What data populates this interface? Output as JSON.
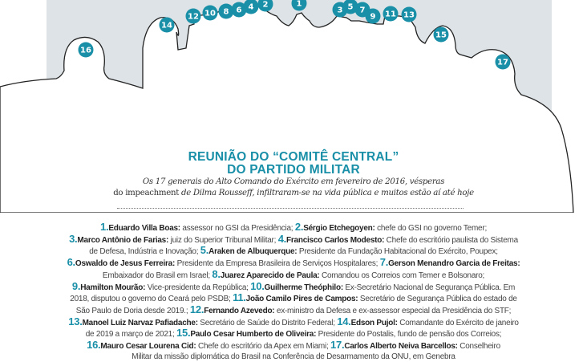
{
  "colors": {
    "accent": "#1a8fa8",
    "illustration_bg": "#dde3e6"
  },
  "badges": [
    "1",
    "2",
    "3",
    "4",
    "5",
    "6",
    "7",
    "8",
    "9",
    "10",
    "11",
    "12",
    "13",
    "14",
    "15",
    "16",
    "17"
  ],
  "title": {
    "line1": "REUNIÃO DO “COMITÊ CENTRAL”",
    "line2": "DO PARTIDO MILITAR"
  },
  "subtitle": {
    "part1": "Os 17 generais do Alto Comando do Exército em fevereiro de 2016, vésperas",
    "part2a": "do ",
    "part2b": "impeachment",
    "part2c": " de Dilma Rousseff, infiltraram-se na vida pública e muitos estão aí até hoje"
  },
  "lines": [
    [
      {
        "n": "1.",
        "name": "Eduardo Villa Boas:",
        "text": " assessor no GSI da Presidência; "
      },
      {
        "n": "2.",
        "name": "Sérgio Etchegoyen:",
        "text": " chefe do GSI no governo Temer;"
      }
    ],
    [
      {
        "n": "3.",
        "name": "Marco Antônio de Farias:",
        "text": " juiz do Superior Tribunal Militar; "
      },
      {
        "n": "4.",
        "name": "Francisco Carlos Modesto:",
        "text": " Chefe do escritório paulista do Sistema"
      }
    ],
    [
      {
        "text": "de Defesa, Indústria e Inovação; "
      },
      {
        "n": "5.",
        "name": "Araken de Albuquerque:",
        "text": " Presidente da Fundação Habitacional do Exército, Poupex;"
      }
    ],
    [
      {
        "n": "6.",
        "name": "Oswaldo de Jesus Ferreira:",
        "text": " Presidente da Empresa Brasileira de Serviços Hospitalares; "
      },
      {
        "n": "7.",
        "name": "Gerson Menandro Garcia de Freitas:"
      }
    ],
    [
      {
        "text": "Embaixador do Brasil em Israel; "
      },
      {
        "n": "8.",
        "name": "Juarez Aparecido de Paula:",
        "text": " Comandou os Correios com Temer e Bolsonaro;"
      }
    ],
    [
      {
        "n": "9.",
        "name": "Hamilton Mourão:",
        "text": " Vice-presidente da República; "
      },
      {
        "n": "10.",
        "name": "Guilherme Theóphilo:",
        "text": " Ex-Secretário Nacional de Segurança Pública. Em"
      }
    ],
    [
      {
        "text": "2018, disputou o governo do Ceará pelo PSDB; "
      },
      {
        "n": "11.",
        "name": "João Camilo Pires de Campos:",
        "text": " Secretário de Segurança Pública do estado de"
      }
    ],
    [
      {
        "text": "São Paulo de Doria desde 2019.; "
      },
      {
        "n": "12.",
        "name": "Fernando Azevedo:",
        "text": " ex-ministro da Defesa e ex-assessor especial da Presidência do STF;"
      }
    ],
    [
      {
        "n": "13.",
        "name": "Manoel Luiz Narvaz Pafiadache:",
        "text": " Secretário de Saúde do Distrito Federal; "
      },
      {
        "n": "14.",
        "name": "Edson Pujol:",
        "text": " Comandante do Exército de janeiro"
      }
    ],
    [
      {
        "text": "de 2019 a março de 2021; "
      },
      {
        "n": "15.",
        "name": "Paulo Cesar Humberto de Oliveira:",
        "text": " Presidente do Postalis, fundo de pensão dos Correios;"
      }
    ],
    [
      {
        "n": "16.",
        "name": "Mauro Cesar Lourena Cid:",
        "text": " Chefe do escritório da Apex em Miami; "
      },
      {
        "n": "17.",
        "name": "Carlos Alberto Neiva Barcellos:",
        "text": " Conselheiro"
      }
    ],
    [
      {
        "text": "Militar da missão diplomática do Brasil na Conferência de Desarmamento da ONU, em Genebra"
      }
    ]
  ]
}
